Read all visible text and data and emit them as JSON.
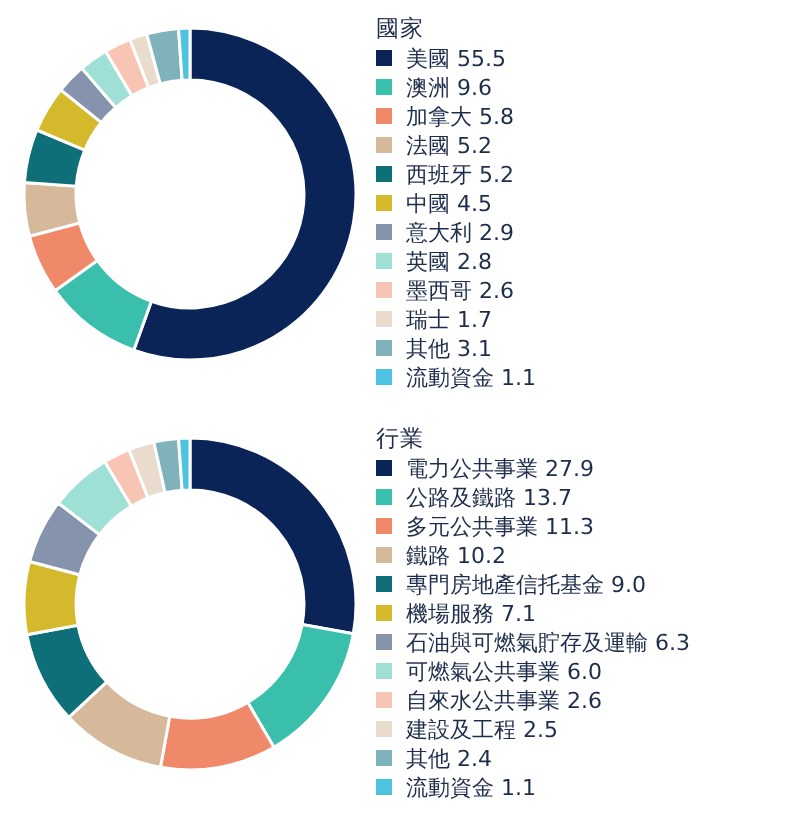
{
  "chart_data": [
    {
      "type": "donut",
      "legend_title": "國家",
      "legend": "right",
      "categories": [
        "美國 55.5",
        "澳洲 9.6",
        "加拿大 5.8",
        "法國 5.2",
        "西班牙 5.2",
        "中國 4.5",
        "意大利 2.9",
        "英國 2.8",
        "墨西哥 2.6",
        "瑞士 1.7",
        "其他 3.1",
        "流動資金 1.1"
      ],
      "values": [
        55.5,
        9.6,
        5.8,
        5.2,
        5.2,
        4.5,
        2.9,
        2.8,
        2.6,
        1.7,
        3.1,
        1.1
      ],
      "colors": [
        "#0a2458",
        "#3bbfad",
        "#f0886a",
        "#d6b89a",
        "#0e6f78",
        "#d4b92c",
        "#8593ad",
        "#9fe0d6",
        "#f8c4b4",
        "#e9dccc",
        "#7fb2bb",
        "#4cc4e0"
      ]
    },
    {
      "type": "donut",
      "legend_title": "行業",
      "legend": "right",
      "categories": [
        "電力公共事業 27.9",
        "公路及鐵路 13.7",
        "多元公共事業 11.3",
        "鐵路 10.2",
        "專門房地產信托基金 9.0",
        "機場服務 7.1",
        "石油與可燃氣貯存及運輸 6.3",
        "可燃氣公共事業 6.0",
        "自來水公共事業 2.6",
        "建設及工程 2.5",
        "其他 2.4",
        "流動資金 1.1"
      ],
      "values": [
        27.9,
        13.7,
        11.3,
        10.2,
        9.0,
        7.1,
        6.3,
        6.0,
        2.6,
        2.5,
        2.4,
        1.1
      ],
      "colors": [
        "#0a2458",
        "#3bbfad",
        "#f0886a",
        "#d6b89a",
        "#0e6f78",
        "#d4b92c",
        "#8593ad",
        "#9fe0d6",
        "#f8c4b4",
        "#e9dccc",
        "#7fb2bb",
        "#4cc4e0"
      ]
    }
  ]
}
